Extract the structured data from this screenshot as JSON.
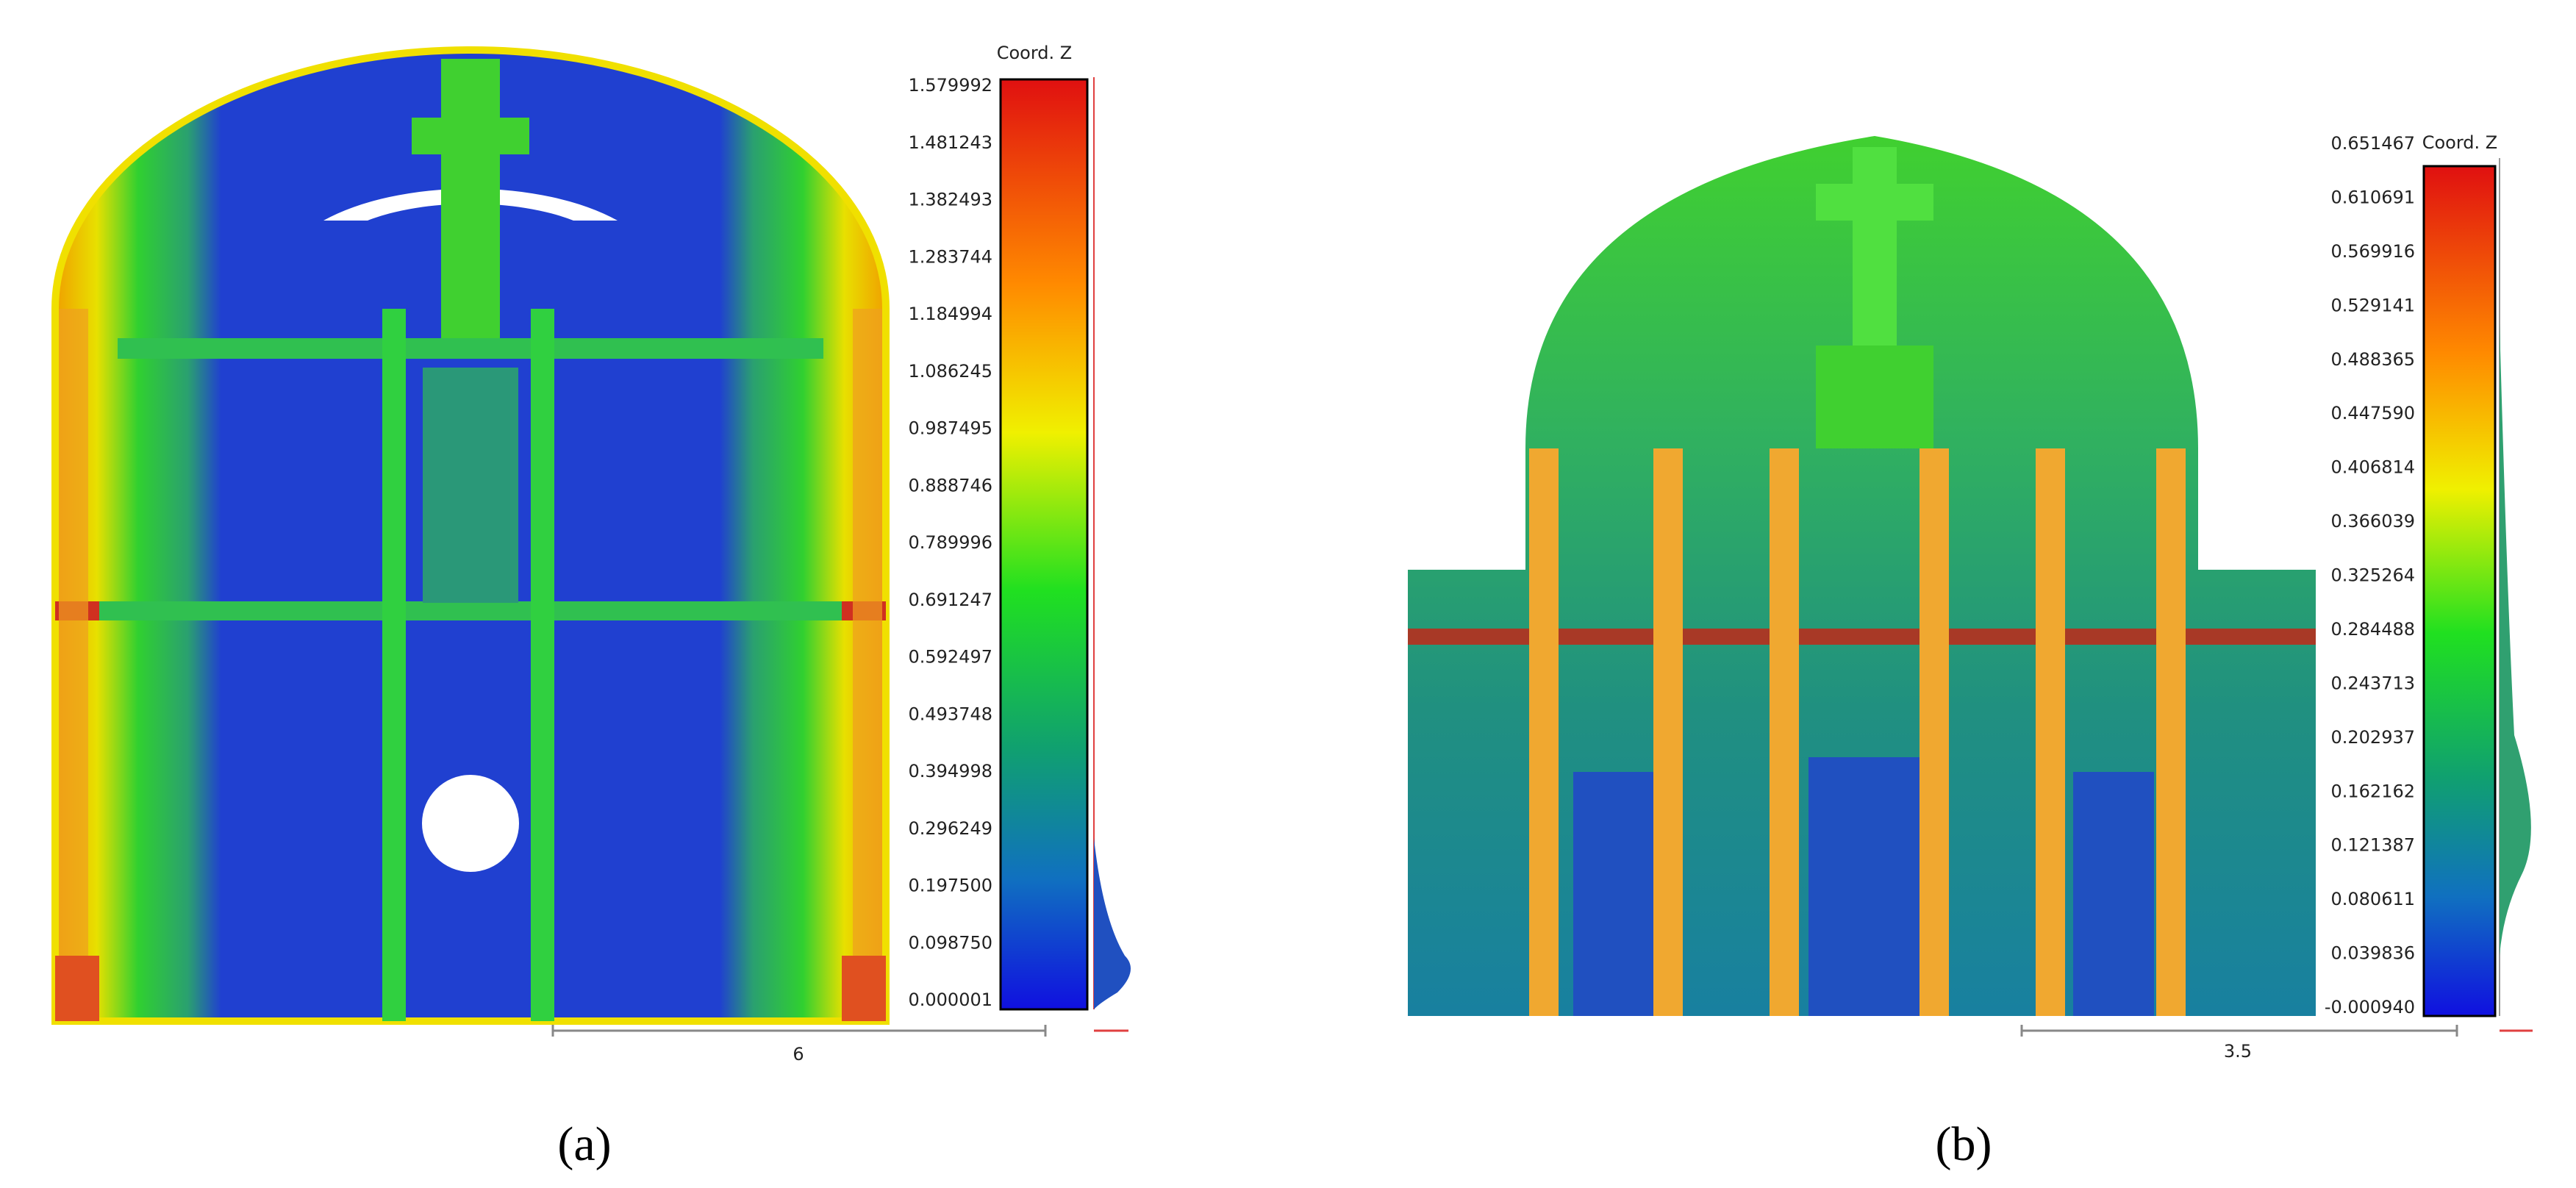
{
  "panels": [
    {
      "colorbar": {
        "title": "Coord. Z",
        "labels": [
          "1.579992",
          "1.481243",
          "1.382493",
          "1.283744",
          "1.184994",
          "1.086245",
          "0.987495",
          "0.888746",
          "0.789996",
          "0.691247",
          "0.592497",
          "0.493748",
          "0.394998",
          "0.296249",
          "0.197500",
          "0.098750",
          "0.000001"
        ]
      },
      "scale_label": "6",
      "caption": "(a)"
    },
    {
      "colorbar": {
        "title": "Coord. Z",
        "labels": [
          "0.651467",
          "0.610691",
          "0.569916",
          "0.529141",
          "0.488365",
          "0.447590",
          "0.406814",
          "0.366039",
          "0.325264",
          "0.284488",
          "0.243713",
          "0.202937",
          "0.162162",
          "0.121387",
          "0.080611",
          "0.039836",
          "-0.000940"
        ]
      },
      "scale_label": "3.5",
      "caption": "(b)"
    }
  ]
}
